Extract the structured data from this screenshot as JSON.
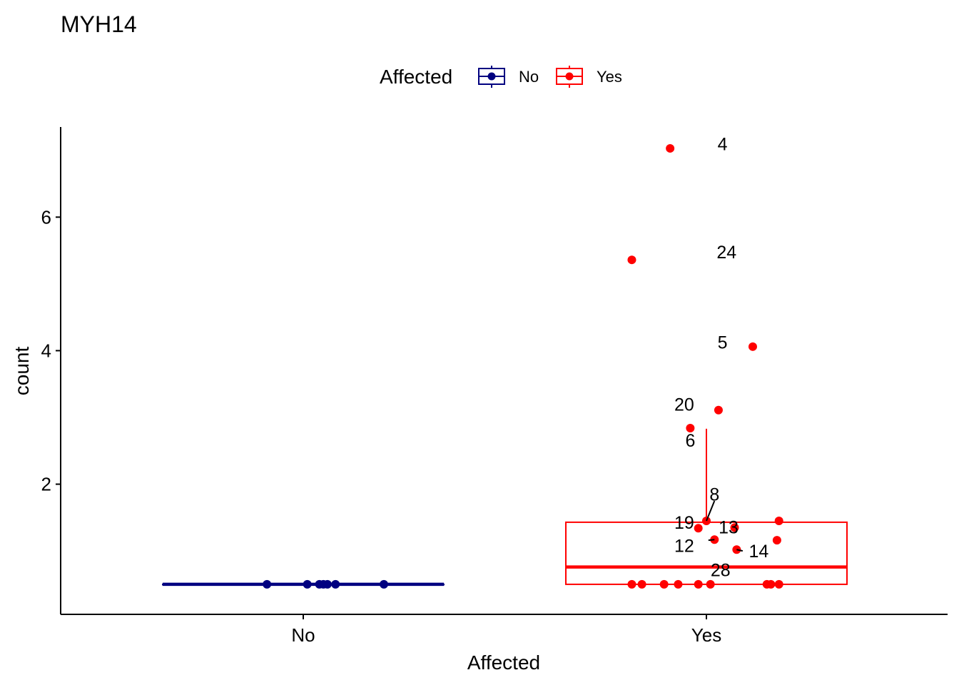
{
  "chart_data": {
    "type": "box",
    "title": "MYH14",
    "xlabel": "Affected",
    "ylabel": "count",
    "categories": [
      "No",
      "Yes"
    ],
    "yticks": [
      2,
      4,
      6
    ],
    "ylim": [
      0.05,
      7.35
    ],
    "grid": false,
    "legend": {
      "title": "Affected",
      "placement": "top",
      "entries": [
        {
          "label": "No",
          "color": "#000080"
        },
        {
          "label": "Yes",
          "color": "#ff0000"
        }
      ]
    },
    "series": [
      {
        "name": "No",
        "color": "#000080",
        "box": {
          "q1": 0.5,
          "median": 0.5,
          "q3": 0.5,
          "whisker_low": 0.5,
          "whisker_high": 0.5
        },
        "points": [
          {
            "x": -0.09,
            "y": 0.5
          },
          {
            "x": 0.01,
            "y": 0.5
          },
          {
            "x": 0.04,
            "y": 0.5
          },
          {
            "x": 0.05,
            "y": 0.5
          },
          {
            "x": 0.06,
            "y": 0.5
          },
          {
            "x": 0.08,
            "y": 0.5
          },
          {
            "x": 0.2,
            "y": 0.5
          }
        ]
      },
      {
        "name": "Yes",
        "color": "#ff0000",
        "box": {
          "q1": 0.5,
          "median": 0.76,
          "q3": 1.43,
          "whisker_low": 0.5,
          "whisker_high": 2.83
        },
        "points": [
          {
            "x": -0.09,
            "y": 7.03,
            "label": "4",
            "lx": 0.04,
            "ly": 7.1
          },
          {
            "x": -0.185,
            "y": 5.36,
            "label": "24",
            "lx": 0.05,
            "ly": 5.48
          },
          {
            "x": 0.115,
            "y": 4.06,
            "label": "5",
            "lx": 0.04,
            "ly": 4.13
          },
          {
            "x": 0.03,
            "y": 3.11,
            "label": "20",
            "lx": -0.055,
            "ly": 3.2
          },
          {
            "x": -0.04,
            "y": 2.84,
            "label": "6",
            "lx": -0.04,
            "ly": 2.66
          },
          {
            "x": -0.02,
            "y": 1.34,
            "label": "19",
            "lx": -0.055,
            "ly": 1.43
          },
          {
            "x": 0.18,
            "y": 1.45
          },
          {
            "x": 0.175,
            "y": 1.16
          },
          {
            "x": 0.07,
            "y": 1.35,
            "label": "13",
            "lx": 0.055,
            "ly": 1.36
          },
          {
            "x": 0.02,
            "y": 1.17,
            "label": "12",
            "lx": -0.055,
            "ly": 1.08,
            "leader": [
              0.005,
              1.16
            ]
          },
          {
            "x": 0.075,
            "y": 1.02,
            "label": "14",
            "lx": 0.13,
            "ly": 1.0,
            "leader": [
              0.09,
              1.0
            ]
          },
          {
            "x": 0.0,
            "y": 1.45,
            "label": "8",
            "lx": 0.02,
            "ly": 1.85,
            "leader": [
              0.02,
              1.75
            ]
          },
          {
            "x": 0.01,
            "y": 0.5,
            "label": "28",
            "lx": 0.035,
            "ly": 0.72
          },
          {
            "x": -0.185,
            "y": 0.5
          },
          {
            "x": -0.16,
            "y": 0.5
          },
          {
            "x": -0.105,
            "y": 0.5
          },
          {
            "x": -0.07,
            "y": 0.5
          },
          {
            "x": -0.02,
            "y": 0.5
          },
          {
            "x": 0.15,
            "y": 0.5
          },
          {
            "x": 0.16,
            "y": 0.5
          },
          {
            "x": 0.18,
            "y": 0.5
          }
        ]
      }
    ]
  }
}
